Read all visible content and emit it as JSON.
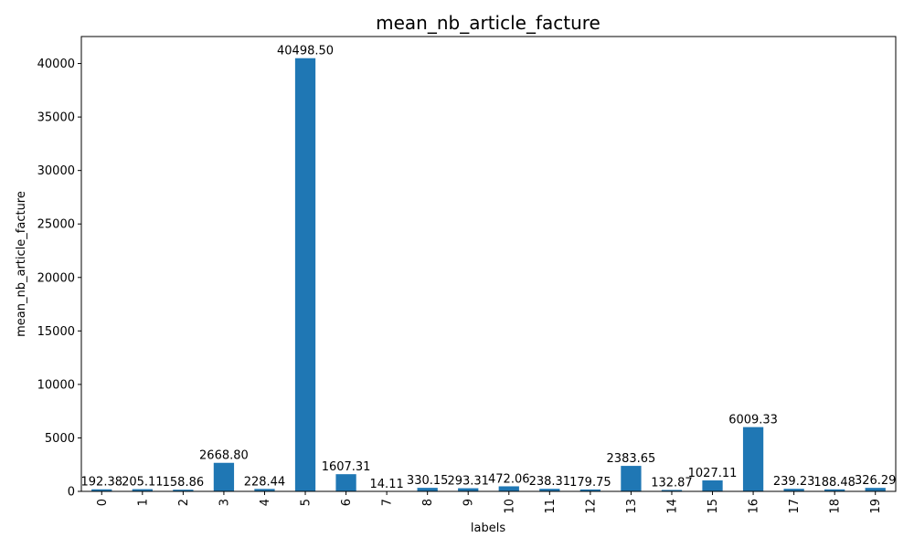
{
  "chart_data": {
    "type": "bar",
    "title": "mean_nb_article_facture",
    "xlabel": "labels",
    "ylabel": "mean_nb_article_facture",
    "categories": [
      "0",
      "1",
      "2",
      "3",
      "4",
      "5",
      "6",
      "7",
      "8",
      "9",
      "10",
      "11",
      "12",
      "13",
      "14",
      "15",
      "16",
      "17",
      "18",
      "19"
    ],
    "values": [
      192.38,
      205.11,
      158.86,
      2668.8,
      228.44,
      40498.5,
      1607.31,
      14.11,
      330.15,
      293.31,
      472.06,
      238.31,
      179.75,
      2383.65,
      132.87,
      1027.11,
      6009.33,
      239.23,
      188.48,
      326.29
    ],
    "value_labels": [
      "192.38",
      "205.11",
      "158.86",
      "2668.80",
      "228.44",
      "40498.50",
      "1607.31",
      "14.11",
      "330.15",
      "293.31",
      "472.06",
      "238.31",
      "179.75",
      "2383.65",
      "132.87",
      "1027.11",
      "6009.33",
      "239.23",
      "188.48",
      "326.29"
    ],
    "ylim": [
      0,
      42524
    ],
    "yticks": [
      0,
      5000,
      10000,
      15000,
      20000,
      25000,
      30000,
      35000,
      40000
    ],
    "ytick_labels": [
      "0",
      "5000",
      "10000",
      "15000",
      "20000",
      "25000",
      "30000",
      "35000",
      "40000"
    ],
    "grid": false,
    "bar_color": "#1f77b4"
  }
}
